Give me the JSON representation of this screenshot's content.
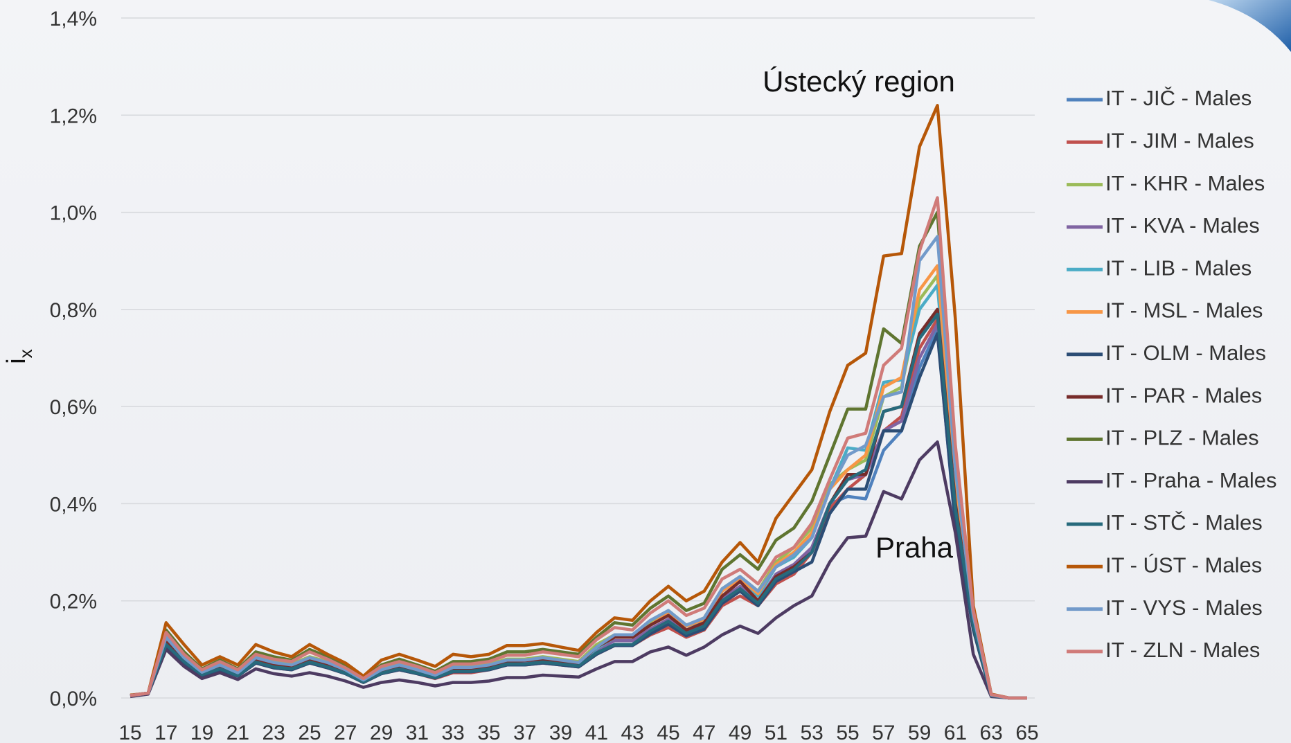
{
  "chart_data": {
    "type": "line",
    "ylabel": {
      "text": "i",
      "subscript": "x"
    },
    "annotations": [
      {
        "text": "Ústecký region",
        "x": 60,
        "y": 1.22
      },
      {
        "text": "Praha",
        "x": 60,
        "y": 0.527
      }
    ],
    "x": [
      15,
      16,
      17,
      18,
      19,
      20,
      21,
      22,
      23,
      24,
      25,
      26,
      27,
      28,
      29,
      30,
      31,
      32,
      33,
      34,
      35,
      36,
      37,
      38,
      39,
      40,
      41,
      42,
      43,
      44,
      45,
      46,
      47,
      48,
      49,
      50,
      51,
      52,
      53,
      54,
      55,
      56,
      57,
      58,
      59,
      60,
      61,
      62,
      63,
      64,
      65
    ],
    "xlim": [
      15,
      65
    ],
    "xticks": [
      15,
      17,
      19,
      21,
      23,
      25,
      27,
      29,
      31,
      33,
      35,
      37,
      39,
      41,
      43,
      45,
      47,
      49,
      51,
      53,
      55,
      57,
      59,
      61,
      63,
      65
    ],
    "ylim": [
      0,
      1.4
    ],
    "yticks": [
      {
        "value": 0,
        "label": "0,0%"
      },
      {
        "value": 0.2,
        "label": "0,2%"
      },
      {
        "value": 0.4,
        "label": "0,4%"
      },
      {
        "value": 0.6,
        "label": "0,6%"
      },
      {
        "value": 0.8,
        "label": "0,8%"
      },
      {
        "value": 1.0,
        "label": "1,0%"
      },
      {
        "value": 1.2,
        "label": "1,2%"
      },
      {
        "value": 1.4,
        "label": "1,4%"
      }
    ],
    "grid": true,
    "legend": "right",
    "series": [
      {
        "name": "IT - JIČ - Males",
        "color": "#4f81bd",
        "values": [
          0.005,
          0.01,
          0.11,
          0.075,
          0.05,
          0.06,
          0.045,
          0.075,
          0.065,
          0.06,
          0.075,
          0.065,
          0.05,
          0.033,
          0.05,
          0.06,
          0.05,
          0.042,
          0.055,
          0.055,
          0.06,
          0.07,
          0.07,
          0.075,
          0.07,
          0.065,
          0.095,
          0.11,
          0.11,
          0.14,
          0.16,
          0.13,
          0.15,
          0.2,
          0.225,
          0.195,
          0.25,
          0.27,
          0.31,
          0.4,
          0.415,
          0.41,
          0.51,
          0.55,
          0.68,
          0.76,
          0.35,
          0.15,
          0.005,
          0,
          0
        ]
      },
      {
        "name": "IT - JIM - Males",
        "color": "#c0504d",
        "values": [
          0.005,
          0.01,
          0.11,
          0.075,
          0.048,
          0.06,
          0.045,
          0.072,
          0.062,
          0.058,
          0.072,
          0.062,
          0.05,
          0.032,
          0.05,
          0.058,
          0.05,
          0.04,
          0.052,
          0.052,
          0.058,
          0.068,
          0.068,
          0.072,
          0.068,
          0.064,
          0.09,
          0.108,
          0.108,
          0.13,
          0.145,
          0.125,
          0.14,
          0.19,
          0.21,
          0.19,
          0.235,
          0.255,
          0.3,
          0.39,
          0.43,
          0.46,
          0.55,
          0.58,
          0.72,
          0.78,
          0.38,
          0.16,
          0.005,
          0,
          0
        ]
      },
      {
        "name": "IT - KHR - Males",
        "color": "#9bbb59",
        "values": [
          0.005,
          0.01,
          0.13,
          0.085,
          0.055,
          0.07,
          0.055,
          0.085,
          0.075,
          0.07,
          0.085,
          0.075,
          0.06,
          0.038,
          0.06,
          0.07,
          0.06,
          0.048,
          0.065,
          0.065,
          0.07,
          0.08,
          0.08,
          0.085,
          0.08,
          0.075,
          0.11,
          0.13,
          0.13,
          0.155,
          0.18,
          0.15,
          0.165,
          0.225,
          0.25,
          0.22,
          0.28,
          0.31,
          0.35,
          0.44,
          0.47,
          0.49,
          0.62,
          0.64,
          0.82,
          0.87,
          0.45,
          0.17,
          0.006,
          0,
          0
        ]
      },
      {
        "name": "IT - KVA - Males",
        "color": "#8064a2",
        "values": [
          0.005,
          0.01,
          0.115,
          0.078,
          0.05,
          0.063,
          0.048,
          0.078,
          0.068,
          0.063,
          0.078,
          0.068,
          0.053,
          0.034,
          0.053,
          0.063,
          0.053,
          0.044,
          0.058,
          0.058,
          0.063,
          0.073,
          0.073,
          0.078,
          0.073,
          0.068,
          0.098,
          0.118,
          0.118,
          0.142,
          0.162,
          0.137,
          0.152,
          0.205,
          0.23,
          0.2,
          0.255,
          0.275,
          0.31,
          0.4,
          0.45,
          0.46,
          0.55,
          0.57,
          0.7,
          0.77,
          0.38,
          0.15,
          0.005,
          0,
          0
        ]
      },
      {
        "name": "IT - LIB - Males",
        "color": "#4bacc6",
        "values": [
          0.005,
          0.01,
          0.12,
          0.08,
          0.052,
          0.066,
          0.05,
          0.082,
          0.072,
          0.066,
          0.082,
          0.072,
          0.056,
          0.036,
          0.056,
          0.066,
          0.056,
          0.046,
          0.062,
          0.062,
          0.066,
          0.077,
          0.077,
          0.082,
          0.077,
          0.072,
          0.102,
          0.125,
          0.125,
          0.15,
          0.175,
          0.148,
          0.16,
          0.22,
          0.245,
          0.21,
          0.27,
          0.29,
          0.33,
          0.43,
          0.515,
          0.51,
          0.65,
          0.655,
          0.8,
          0.85,
          0.43,
          0.16,
          0.005,
          0,
          0
        ]
      },
      {
        "name": "IT - MSL - Males",
        "color": "#f79646",
        "values": [
          0.005,
          0.01,
          0.125,
          0.083,
          0.053,
          0.068,
          0.052,
          0.083,
          0.073,
          0.068,
          0.083,
          0.073,
          0.058,
          0.037,
          0.058,
          0.068,
          0.058,
          0.047,
          0.063,
          0.063,
          0.068,
          0.078,
          0.078,
          0.083,
          0.078,
          0.073,
          0.105,
          0.125,
          0.125,
          0.15,
          0.175,
          0.148,
          0.162,
          0.22,
          0.245,
          0.215,
          0.275,
          0.3,
          0.34,
          0.43,
          0.47,
          0.5,
          0.64,
          0.66,
          0.84,
          0.89,
          0.45,
          0.17,
          0.006,
          0,
          0
        ]
      },
      {
        "name": "IT - OLM - Males",
        "color": "#2c4d75",
        "values": [
          0.005,
          0.01,
          0.105,
          0.072,
          0.046,
          0.058,
          0.045,
          0.072,
          0.062,
          0.058,
          0.072,
          0.062,
          0.05,
          0.032,
          0.05,
          0.058,
          0.05,
          0.041,
          0.054,
          0.054,
          0.058,
          0.068,
          0.068,
          0.072,
          0.068,
          0.064,
          0.09,
          0.108,
          0.108,
          0.132,
          0.152,
          0.128,
          0.142,
          0.195,
          0.22,
          0.19,
          0.24,
          0.26,
          0.28,
          0.38,
          0.43,
          0.43,
          0.55,
          0.55,
          0.66,
          0.75,
          0.36,
          0.14,
          0.005,
          0,
          0
        ]
      },
      {
        "name": "IT - PAR - Males",
        "color": "#772c2a",
        "values": [
          0.005,
          0.01,
          0.115,
          0.078,
          0.05,
          0.063,
          0.048,
          0.078,
          0.068,
          0.063,
          0.078,
          0.068,
          0.053,
          0.034,
          0.053,
          0.063,
          0.053,
          0.044,
          0.058,
          0.06,
          0.065,
          0.075,
          0.077,
          0.08,
          0.075,
          0.07,
          0.105,
          0.125,
          0.125,
          0.15,
          0.17,
          0.14,
          0.155,
          0.21,
          0.24,
          0.2,
          0.25,
          0.27,
          0.3,
          0.4,
          0.46,
          0.46,
          0.59,
          0.6,
          0.75,
          0.8,
          0.4,
          0.15,
          0.005,
          0,
          0
        ]
      },
      {
        "name": "IT - PLZ - Males",
        "color": "#5f7530",
        "values": [
          0.005,
          0.01,
          0.14,
          0.095,
          0.06,
          0.078,
          0.06,
          0.095,
          0.085,
          0.078,
          0.1,
          0.085,
          0.065,
          0.042,
          0.068,
          0.08,
          0.068,
          0.055,
          0.075,
          0.075,
          0.08,
          0.095,
          0.095,
          0.1,
          0.095,
          0.09,
          0.125,
          0.155,
          0.15,
          0.185,
          0.21,
          0.18,
          0.195,
          0.265,
          0.295,
          0.265,
          0.325,
          0.35,
          0.405,
          0.5,
          0.595,
          0.595,
          0.76,
          0.73,
          0.93,
          1.0,
          0.5,
          0.18,
          0.007,
          0,
          0
        ]
      },
      {
        "name": "IT - Praha - Males",
        "color": "#4d3b62",
        "values": [
          0.003,
          0.008,
          0.1,
          0.065,
          0.04,
          0.052,
          0.038,
          0.06,
          0.05,
          0.045,
          0.052,
          0.045,
          0.035,
          0.022,
          0.032,
          0.037,
          0.032,
          0.025,
          0.032,
          0.032,
          0.035,
          0.042,
          0.042,
          0.047,
          0.045,
          0.043,
          0.06,
          0.075,
          0.075,
          0.095,
          0.105,
          0.088,
          0.105,
          0.13,
          0.148,
          0.133,
          0.165,
          0.19,
          0.21,
          0.28,
          0.33,
          0.333,
          0.425,
          0.41,
          0.49,
          0.527,
          0.34,
          0.09,
          0.003,
          0,
          0
        ]
      },
      {
        "name": "IT - STČ - Males",
        "color": "#276a7c",
        "values": [
          0.005,
          0.01,
          0.11,
          0.075,
          0.048,
          0.06,
          0.046,
          0.074,
          0.064,
          0.06,
          0.074,
          0.064,
          0.051,
          0.033,
          0.051,
          0.06,
          0.051,
          0.042,
          0.055,
          0.055,
          0.06,
          0.07,
          0.07,
          0.074,
          0.07,
          0.066,
          0.093,
          0.11,
          0.11,
          0.138,
          0.158,
          0.133,
          0.148,
          0.2,
          0.225,
          0.195,
          0.245,
          0.265,
          0.3,
          0.4,
          0.45,
          0.47,
          0.59,
          0.6,
          0.74,
          0.79,
          0.39,
          0.15,
          0.005,
          0,
          0
        ]
      },
      {
        "name": "IT - ÚST - Males",
        "color": "#b65708",
        "values": [
          0.006,
          0.01,
          0.155,
          0.11,
          0.068,
          0.085,
          0.068,
          0.11,
          0.095,
          0.085,
          0.11,
          0.09,
          0.072,
          0.045,
          0.078,
          0.09,
          0.078,
          0.065,
          0.09,
          0.085,
          0.09,
          0.108,
          0.108,
          0.112,
          0.105,
          0.098,
          0.135,
          0.165,
          0.16,
          0.2,
          0.23,
          0.2,
          0.22,
          0.28,
          0.32,
          0.28,
          0.37,
          0.42,
          0.47,
          0.59,
          0.685,
          0.71,
          0.91,
          0.915,
          1.135,
          1.22,
          0.78,
          0.19,
          0.008,
          0,
          0
        ]
      },
      {
        "name": "IT - VYS - Males",
        "color": "#729aca",
        "values": [
          0.005,
          0.01,
          0.125,
          0.083,
          0.053,
          0.068,
          0.052,
          0.083,
          0.073,
          0.068,
          0.083,
          0.073,
          0.058,
          0.037,
          0.058,
          0.068,
          0.058,
          0.047,
          0.063,
          0.063,
          0.068,
          0.078,
          0.078,
          0.083,
          0.078,
          0.073,
          0.105,
          0.13,
          0.13,
          0.16,
          0.18,
          0.15,
          0.165,
          0.225,
          0.25,
          0.22,
          0.27,
          0.295,
          0.33,
          0.43,
          0.5,
          0.52,
          0.62,
          0.63,
          0.9,
          0.95,
          0.47,
          0.17,
          0.006,
          0,
          0
        ]
      },
      {
        "name": "IT - ZLN - Males",
        "color": "#d07b79",
        "values": [
          0.005,
          0.01,
          0.135,
          0.09,
          0.058,
          0.075,
          0.058,
          0.09,
          0.08,
          0.075,
          0.095,
          0.08,
          0.062,
          0.04,
          0.065,
          0.075,
          0.065,
          0.052,
          0.07,
          0.07,
          0.075,
          0.088,
          0.088,
          0.095,
          0.09,
          0.085,
          0.12,
          0.145,
          0.14,
          0.175,
          0.2,
          0.17,
          0.185,
          0.245,
          0.265,
          0.235,
          0.29,
          0.31,
          0.36,
          0.45,
          0.535,
          0.545,
          0.685,
          0.72,
          0.92,
          1.03,
          0.52,
          0.18,
          0.007,
          0,
          0
        ]
      }
    ]
  }
}
